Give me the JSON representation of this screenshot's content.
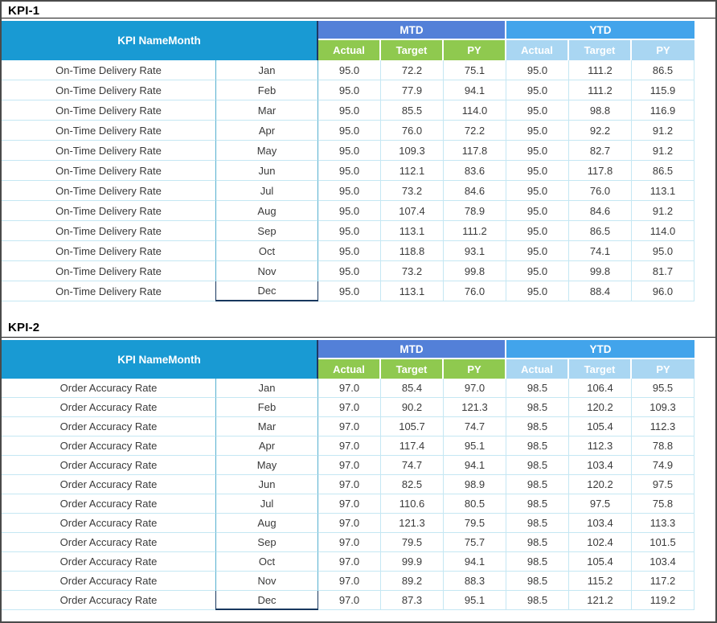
{
  "colors": {
    "frame": "#4a4a4a",
    "header_cyan": "#199ad3",
    "corner_divider": "#1f3864",
    "mtd_blue": "#5380d8",
    "ytd_blue": "#42a4eb",
    "sub_green": "#8fc94f",
    "sub_lightblue": "#a9d6f2",
    "row_border": "#c5e7f3",
    "month_border": "#55b0d0",
    "dec_border": "#17375e"
  },
  "tables": [
    {
      "title": "KPI-1",
      "header": {
        "kpi_name": "KPI Name",
        "month": "Month",
        "mtd": "MTD",
        "ytd": "YTD",
        "sub": [
          "Actual",
          "Target",
          "PY"
        ]
      },
      "rows": [
        {
          "kpi": "On-Time Delivery Rate",
          "month": "Jan",
          "mtd": [
            "95.0",
            "72.2",
            "75.1"
          ],
          "ytd": [
            "95.0",
            "111.2",
            "86.5"
          ]
        },
        {
          "kpi": "On-Time Delivery Rate",
          "month": "Feb",
          "mtd": [
            "95.0",
            "77.9",
            "94.1"
          ],
          "ytd": [
            "95.0",
            "111.2",
            "115.9"
          ]
        },
        {
          "kpi": "On-Time Delivery Rate",
          "month": "Mar",
          "mtd": [
            "95.0",
            "85.5",
            "114.0"
          ],
          "ytd": [
            "95.0",
            "98.8",
            "116.9"
          ]
        },
        {
          "kpi": "On-Time Delivery Rate",
          "month": "Apr",
          "mtd": [
            "95.0",
            "76.0",
            "72.2"
          ],
          "ytd": [
            "95.0",
            "92.2",
            "91.2"
          ]
        },
        {
          "kpi": "On-Time Delivery Rate",
          "month": "May",
          "mtd": [
            "95.0",
            "109.3",
            "117.8"
          ],
          "ytd": [
            "95.0",
            "82.7",
            "91.2"
          ]
        },
        {
          "kpi": "On-Time Delivery Rate",
          "month": "Jun",
          "mtd": [
            "95.0",
            "112.1",
            "83.6"
          ],
          "ytd": [
            "95.0",
            "117.8",
            "86.5"
          ]
        },
        {
          "kpi": "On-Time Delivery Rate",
          "month": "Jul",
          "mtd": [
            "95.0",
            "73.2",
            "84.6"
          ],
          "ytd": [
            "95.0",
            "76.0",
            "113.1"
          ]
        },
        {
          "kpi": "On-Time Delivery Rate",
          "month": "Aug",
          "mtd": [
            "95.0",
            "107.4",
            "78.9"
          ],
          "ytd": [
            "95.0",
            "84.6",
            "91.2"
          ]
        },
        {
          "kpi": "On-Time Delivery Rate",
          "month": "Sep",
          "mtd": [
            "95.0",
            "113.1",
            "111.2"
          ],
          "ytd": [
            "95.0",
            "86.5",
            "114.0"
          ]
        },
        {
          "kpi": "On-Time Delivery Rate",
          "month": "Oct",
          "mtd": [
            "95.0",
            "118.8",
            "93.1"
          ],
          "ytd": [
            "95.0",
            "74.1",
            "95.0"
          ]
        },
        {
          "kpi": "On-Time Delivery Rate",
          "month": "Nov",
          "mtd": [
            "95.0",
            "73.2",
            "99.8"
          ],
          "ytd": [
            "95.0",
            "99.8",
            "81.7"
          ]
        },
        {
          "kpi": "On-Time Delivery Rate",
          "month": "Dec",
          "mtd": [
            "95.0",
            "113.1",
            "76.0"
          ],
          "ytd": [
            "95.0",
            "88.4",
            "96.0"
          ]
        }
      ]
    },
    {
      "title": "KPI-2",
      "header": {
        "kpi_name": "KPI Name",
        "month": "Month",
        "mtd": "MTD",
        "ytd": "YTD",
        "sub": [
          "Actual",
          "Target",
          "PY"
        ]
      },
      "rows": [
        {
          "kpi": "Order Accuracy Rate",
          "month": "Jan",
          "mtd": [
            "97.0",
            "85.4",
            "97.0"
          ],
          "ytd": [
            "98.5",
            "106.4",
            "95.5"
          ]
        },
        {
          "kpi": "Order Accuracy Rate",
          "month": "Feb",
          "mtd": [
            "97.0",
            "90.2",
            "121.3"
          ],
          "ytd": [
            "98.5",
            "120.2",
            "109.3"
          ]
        },
        {
          "kpi": "Order Accuracy Rate",
          "month": "Mar",
          "mtd": [
            "97.0",
            "105.7",
            "74.7"
          ],
          "ytd": [
            "98.5",
            "105.4",
            "112.3"
          ]
        },
        {
          "kpi": "Order Accuracy Rate",
          "month": "Apr",
          "mtd": [
            "97.0",
            "117.4",
            "95.1"
          ],
          "ytd": [
            "98.5",
            "112.3",
            "78.8"
          ]
        },
        {
          "kpi": "Order Accuracy Rate",
          "month": "May",
          "mtd": [
            "97.0",
            "74.7",
            "94.1"
          ],
          "ytd": [
            "98.5",
            "103.4",
            "74.9"
          ]
        },
        {
          "kpi": "Order Accuracy Rate",
          "month": "Jun",
          "mtd": [
            "97.0",
            "82.5",
            "98.9"
          ],
          "ytd": [
            "98.5",
            "120.2",
            "97.5"
          ]
        },
        {
          "kpi": "Order Accuracy Rate",
          "month": "Jul",
          "mtd": [
            "97.0",
            "110.6",
            "80.5"
          ],
          "ytd": [
            "98.5",
            "97.5",
            "75.8"
          ]
        },
        {
          "kpi": "Order Accuracy Rate",
          "month": "Aug",
          "mtd": [
            "97.0",
            "121.3",
            "79.5"
          ],
          "ytd": [
            "98.5",
            "103.4",
            "113.3"
          ]
        },
        {
          "kpi": "Order Accuracy Rate",
          "month": "Sep",
          "mtd": [
            "97.0",
            "79.5",
            "75.7"
          ],
          "ytd": [
            "98.5",
            "102.4",
            "101.5"
          ]
        },
        {
          "kpi": "Order Accuracy Rate",
          "month": "Oct",
          "mtd": [
            "97.0",
            "99.9",
            "94.1"
          ],
          "ytd": [
            "98.5",
            "105.4",
            "103.4"
          ]
        },
        {
          "kpi": "Order Accuracy Rate",
          "month": "Nov",
          "mtd": [
            "97.0",
            "89.2",
            "88.3"
          ],
          "ytd": [
            "98.5",
            "115.2",
            "117.2"
          ]
        },
        {
          "kpi": "Order Accuracy Rate",
          "month": "Dec",
          "mtd": [
            "97.0",
            "87.3",
            "95.1"
          ],
          "ytd": [
            "98.5",
            "121.2",
            "119.2"
          ]
        }
      ]
    }
  ]
}
